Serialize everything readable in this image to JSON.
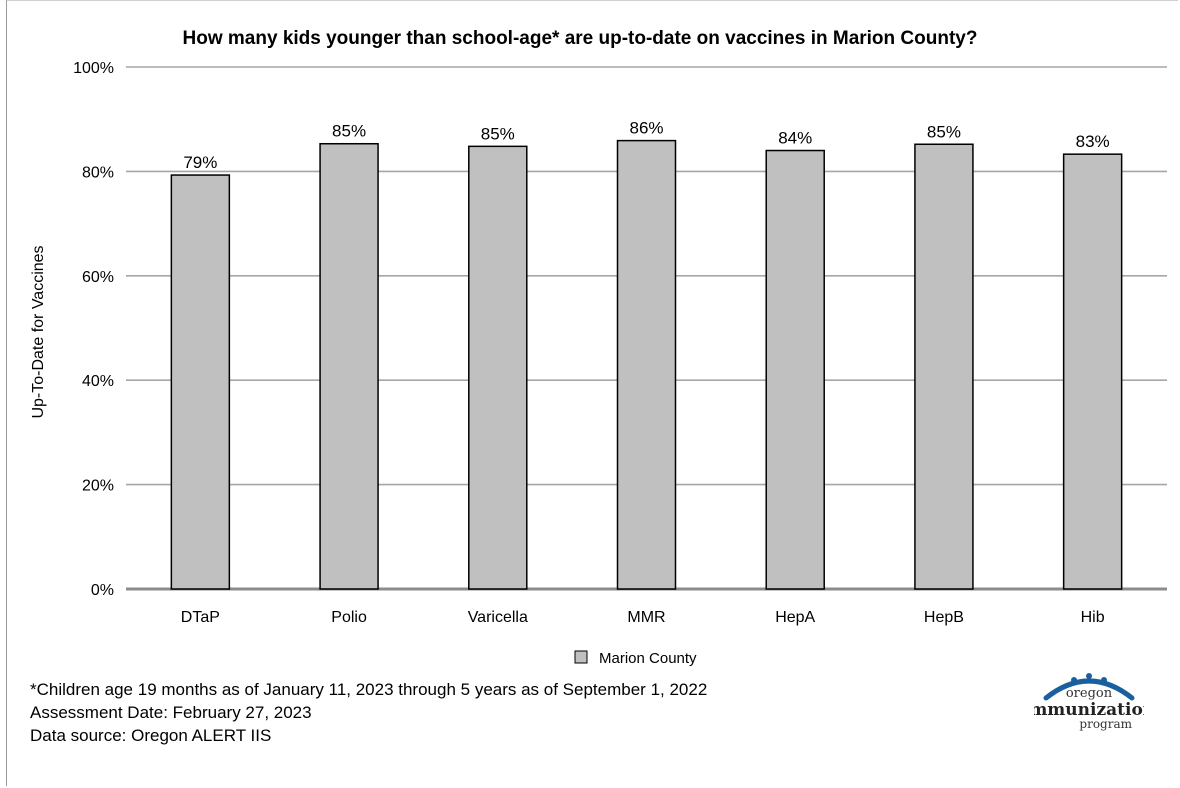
{
  "chart_data": {
    "type": "bar",
    "title": "How many kids younger than school-age* are up-to-date on vaccines in Marion County?",
    "xlabel": "",
    "ylabel": "Up-To-Date for Vaccines",
    "categories": [
      "DTaP",
      "Polio",
      "Varicella",
      "MMR",
      "HepA",
      "HepB",
      "Hib"
    ],
    "series": [
      {
        "name": "Marion County",
        "values": [
          79.3,
          85.3,
          84.8,
          85.9,
          84.0,
          85.2,
          83.3
        ],
        "labels": [
          "79%",
          "85%",
          "85%",
          "86%",
          "84%",
          "85%",
          "83%"
        ]
      }
    ],
    "ylim": [
      0,
      100
    ],
    "yticks": [
      0,
      20,
      40,
      60,
      80,
      100
    ],
    "ytick_labels": [
      "0%",
      "20%",
      "40%",
      "60%",
      "80%",
      "100%"
    ],
    "grid": true,
    "legend": "bottom-center",
    "colors": {
      "bar": "#c0c0c0",
      "bar_stroke": "#000000",
      "grid": "#a6a6a6",
      "axis": "#8c8c8c"
    }
  },
  "footnotes": {
    "note": "*Children age 19 months as of January 11, 2023 through 5 years as of September 1, 2022",
    "assessment": "Assessment Date: February 27, 2023",
    "source": "Data source: Oregon ALERT IIS"
  },
  "logo": {
    "line1": "oregon",
    "line2": "immunization",
    "line3": "program",
    "color": "#1a5f9e"
  }
}
